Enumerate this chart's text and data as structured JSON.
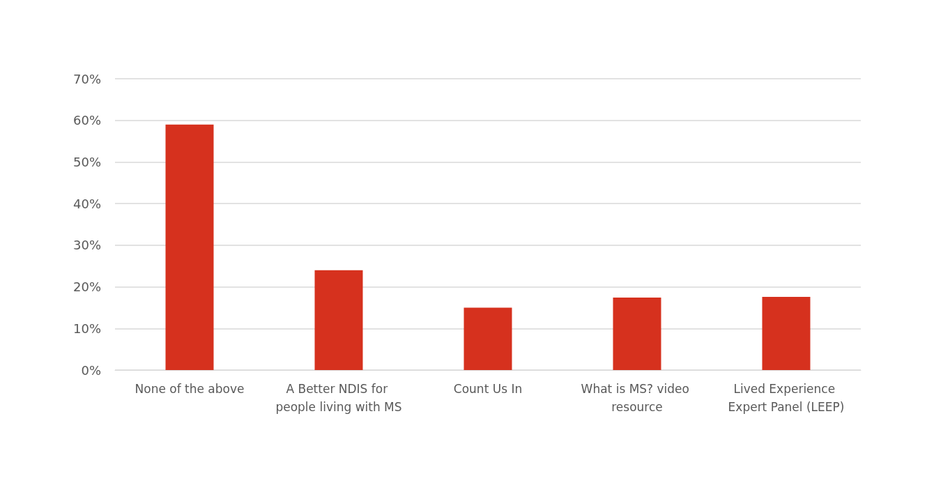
{
  "chart_data": {
    "type": "bar",
    "categories": [
      "None of the above",
      "A Better NDIS for people living with MS",
      "Count Us In",
      "What is MS? video resource",
      "Lived Experience Expert Panel (LEEP)"
    ],
    "values": [
      59,
      24,
      15,
      17.4,
      17.6
    ],
    "color": "#d6311e",
    "ylim": [
      0,
      70
    ],
    "yticks": [
      {
        "value": 0,
        "label": "0%"
      },
      {
        "value": 10,
        "label": "10%"
      },
      {
        "value": 20,
        "label": "20%"
      },
      {
        "value": 30,
        "label": "30%"
      },
      {
        "value": 40,
        "label": "40%"
      },
      {
        "value": 50,
        "label": "50%"
      },
      {
        "value": 60,
        "label": "60%"
      },
      {
        "value": 70,
        "label": "70%"
      }
    ],
    "grid": "y"
  }
}
